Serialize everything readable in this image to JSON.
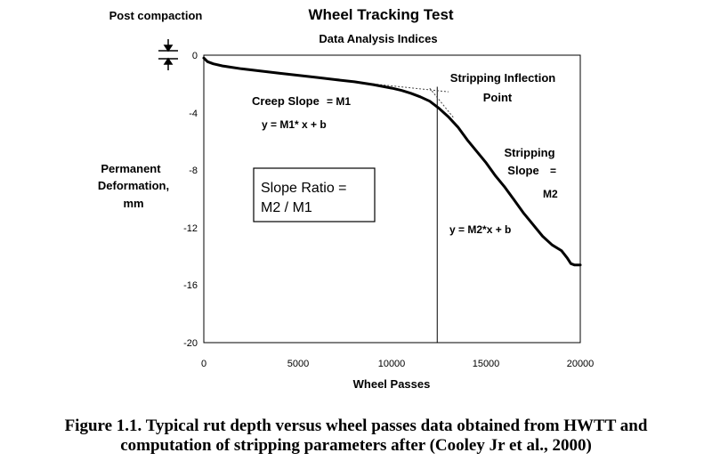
{
  "chart_data": {
    "type": "line",
    "title": "Wheel Tracking Test",
    "subtitle": "Data Analysis Indices",
    "xlabel": "Wheel Passes",
    "ylabel_lines": [
      "Permanent",
      "Deformation,",
      "mm"
    ],
    "xlim": [
      0,
      20000
    ],
    "ylim": [
      -20,
      0
    ],
    "x_ticks": [
      "0",
      "5000",
      "10000",
      "15000",
      "20000"
    ],
    "y_ticks": [
      "0",
      "-4",
      "-8",
      "-12",
      "-16",
      "-20"
    ],
    "grid": false,
    "series": [
      {
        "x": [
          0,
          200,
          500,
          1000,
          2000,
          3000,
          4000,
          5000,
          6000,
          7000,
          8000,
          9000,
          10000,
          10500,
          11000,
          11500,
          12000,
          12500,
          13000,
          13500,
          14000,
          14500,
          15000,
          15500,
          16000,
          16500,
          17000,
          17500,
          18000,
          18500,
          19000,
          19300,
          19500,
          19700,
          20000
        ],
        "y": [
          -0.2,
          -0.45,
          -0.6,
          -0.75,
          -0.95,
          -1.1,
          -1.25,
          -1.4,
          -1.55,
          -1.7,
          -1.85,
          -2.05,
          -2.3,
          -2.45,
          -2.65,
          -2.9,
          -3.2,
          -3.7,
          -4.3,
          -5.0,
          -5.9,
          -6.7,
          -7.5,
          -8.4,
          -9.2,
          -10.1,
          -11.0,
          -11.8,
          -12.6,
          -13.2,
          -13.6,
          -14.1,
          -14.5,
          -14.6,
          -14.6
        ]
      }
    ],
    "inflection_x": 12400,
    "annotations": {
      "post_compaction": "Post compaction",
      "creep_slope": "Creep Slope",
      "creep_m": "= M1",
      "creep_eq": "y = M1* x + b",
      "slope_ratio_line1": "Slope Ratio =",
      "slope_ratio_line2": "M2 / M1",
      "inflection_line1": "Stripping Inflection",
      "inflection_line2": "Point",
      "stripping_line1": "Stripping",
      "stripping_line2": "Slope",
      "stripping_eq_sign": "=",
      "stripping_m": "M2",
      "stripping_eq": "y = M2*x + b"
    }
  },
  "caption": {
    "line1": "Figure 1.1. Typical rut depth versus wheel passes data obtained from HWTT and",
    "line2": "computation of stripping parameters after (Cooley Jr et al., 2000)"
  }
}
